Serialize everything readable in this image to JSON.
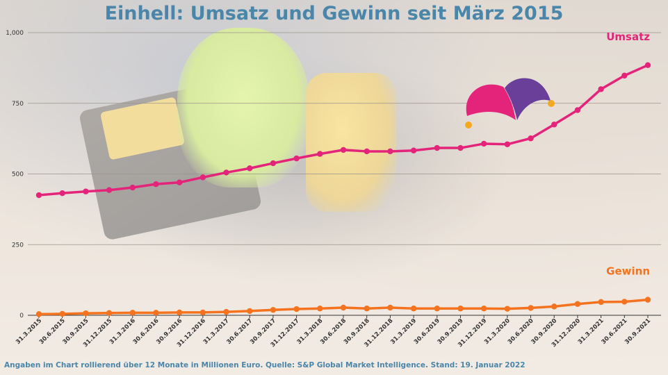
{
  "chart_data": {
    "type": "line",
    "title": "Einhell: Umsatz und Gewinn seit März 2015",
    "x": [
      "31.3.2015",
      "30.6.2015",
      "30.9.2015",
      "31.12.2015",
      "31.3.2016",
      "30.6.2016",
      "30.9.2016",
      "31.12.2016",
      "31.3.2017",
      "30.6.2017",
      "30.9.2017",
      "31.12.2017",
      "31.3.2018",
      "30.6.2018",
      "30.9.2018",
      "31.12.2018",
      "31.3.2019",
      "30.6.2019",
      "30.9.2019",
      "31.12.2019",
      "31.3.2020",
      "30.6.2020",
      "30.9.2020",
      "31.12.2020",
      "31.3.2021",
      "30.6.2021",
      "30.9.2021"
    ],
    "series": [
      {
        "name": "Umsatz",
        "color": "#e4247a",
        "values": [
          425,
          432,
          438,
          443,
          452,
          464,
          470,
          488,
          505,
          520,
          538,
          555,
          571,
          585,
          580,
          580,
          583,
          592,
          592,
          607,
          605,
          626,
          675,
          726,
          800,
          848,
          885
        ]
      },
      {
        "name": "Gewinn",
        "color": "#f5731e",
        "values": [
          4,
          5,
          7,
          8,
          9,
          9,
          10,
          10,
          12,
          15,
          19,
          22,
          24,
          27,
          24,
          27,
          24,
          24,
          24,
          24,
          23,
          26,
          31,
          40,
          47,
          48,
          55
        ]
      }
    ],
    "yticks": [
      "0",
      "250",
      "500",
      "750",
      "1,000"
    ],
    "ylim": [
      0,
      1000
    ],
    "grid": true,
    "xlabel": "",
    "ylabel": ""
  },
  "footnote": "Angaben im Chart rollierend über 12 Monate in Millionen Euro. Quelle:  S&P Global Market Intelligence. Stand: 19. Januar 2022",
  "jester_colors": {
    "left": "#e4247a",
    "right": "#6a3f9a",
    "bells": "#f2a91e"
  }
}
